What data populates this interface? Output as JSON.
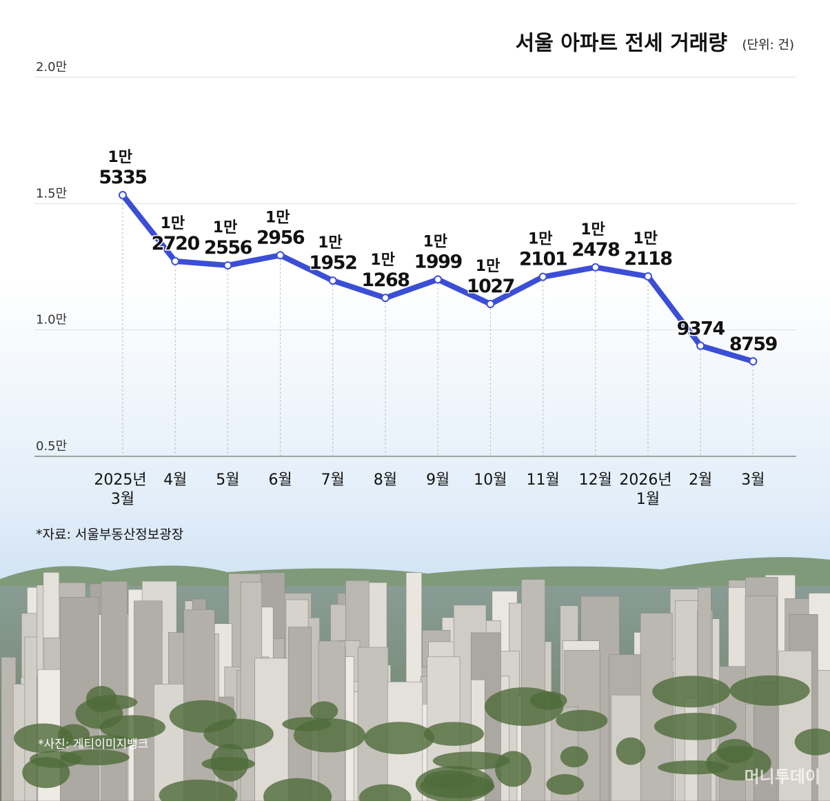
{
  "chart_data": {
    "type": "line",
    "title": "서울 아파트 전세 거래량",
    "unit": "(단위: 건)",
    "categories": [
      "2025년 3월",
      "4월",
      "5월",
      "6월",
      "7월",
      "8월",
      "9월",
      "10월",
      "11월",
      "12월",
      "2026년 1월",
      "2월",
      "3월"
    ],
    "values": [
      15335,
      12720,
      12556,
      12956,
      11952,
      11268,
      11999,
      11027,
      12101,
      12478,
      12118,
      9374,
      8759
    ],
    "value_labels": [
      "1만 5335",
      "1만 2720",
      "1만 2556",
      "1만 2956",
      "1만 1952",
      "1만 1268",
      "1만 1999",
      "1만 1027",
      "1만 2101",
      "1만 2478",
      "1만 2118",
      "9374",
      "8759"
    ],
    "color": "#3b4ed6",
    "ylim": [
      5000,
      20000
    ],
    "yticks": [
      {
        "value": 5000,
        "label": "0.5만"
      },
      {
        "value": 10000,
        "label": "1.0만"
      },
      {
        "value": 15000,
        "label": "1.5만"
      },
      {
        "value": 20000,
        "label": "2.0만"
      }
    ],
    "grid": true,
    "source": "*자료: 서울부동산정보광장",
    "photo_credit": "*사진: 게티이미지뱅크",
    "watermark": "머니투데이"
  }
}
